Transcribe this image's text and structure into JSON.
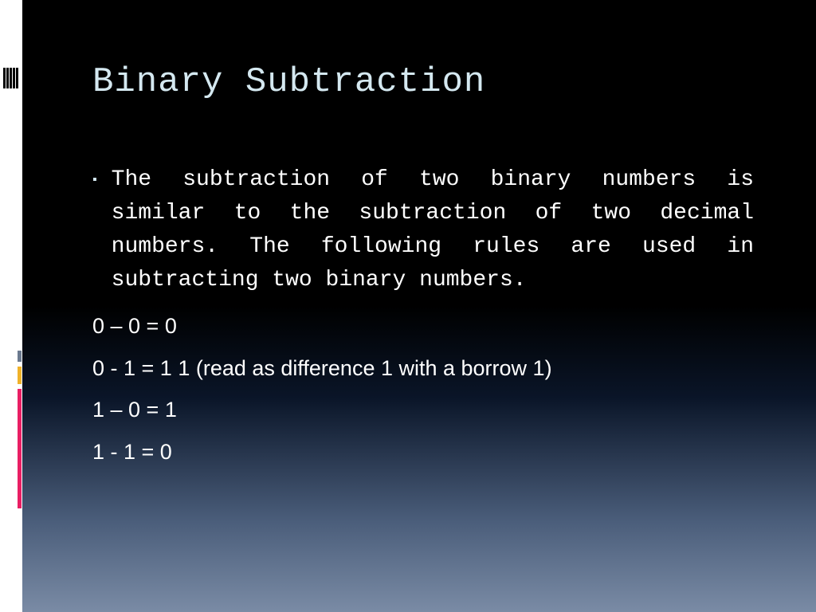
{
  "slide": {
    "title": "Binary Subtraction",
    "title_color": "#d4e8f0",
    "title_font": "Consolas",
    "title_fontsize": 44,
    "body_text_color": "#ffffff",
    "bullet_color": "#d4e8f0",
    "background_gradient": [
      "#000000",
      "#000000",
      "#0a1528",
      "#4a5d7a",
      "#7a8ba5"
    ],
    "intro_text": "The subtraction of two binary numbers is similar to the subtraction of two decimal numbers. The following rules are used in subtracting two binary numbers.",
    "intro_fontsize": 28,
    "rules": [
      "0 – 0 = 0",
      "0 - 1 = 1   1 (read as difference 1 with a borrow 1)",
      "1 – 0 = 1",
      "1 -  1 = 0"
    ],
    "rules_fontsize": 27,
    "decoration": {
      "top_bars_color": "#000000",
      "left_bars": [
        {
          "color": "#6b7a8f",
          "height": 14
        },
        {
          "color": "#f0b229",
          "height": 22
        },
        {
          "color": "#e91e63",
          "height": 150
        }
      ]
    }
  }
}
